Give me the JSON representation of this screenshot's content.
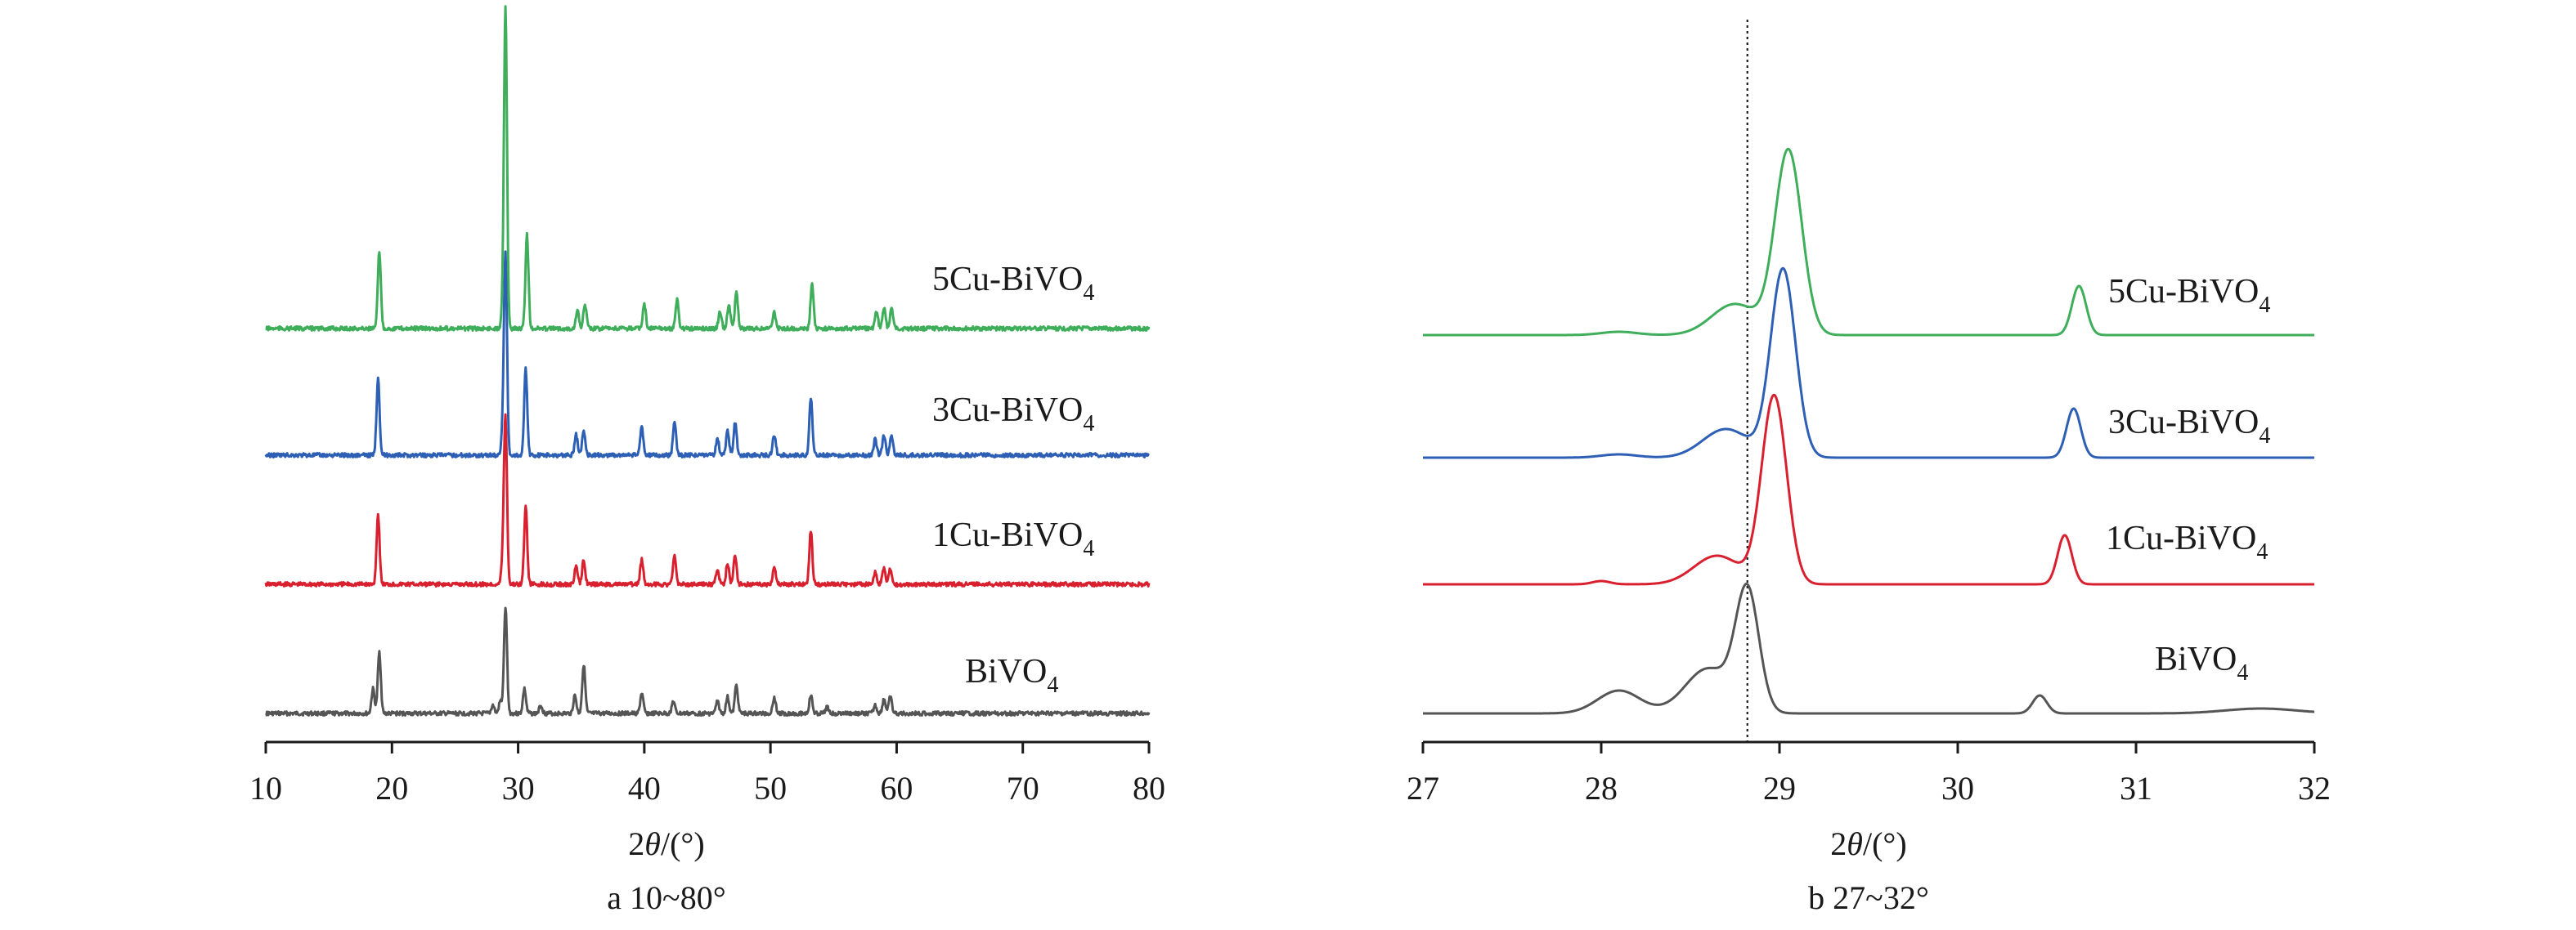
{
  "chart_data": [
    {
      "type": "line",
      "xlabel": "2θ/(°)",
      "caption": "a 10~80°",
      "xlim": [
        10,
        80
      ],
      "x_ticks": [
        10,
        20,
        30,
        40,
        50,
        60,
        70,
        80
      ],
      "ylabel": "",
      "grid": false,
      "series": [
        {
          "name": "BiVO4",
          "label_main": "BiVO",
          "label_sub": "4",
          "color": "#555555",
          "peaks": [
            [
              18.5,
              0.3
            ],
            [
              19.0,
              0.75
            ],
            [
              28.0,
              0.1
            ],
            [
              28.6,
              0.15
            ],
            [
              29.0,
              1.3
            ],
            [
              30.5,
              0.3
            ],
            [
              31.8,
              0.1
            ],
            [
              34.5,
              0.22
            ],
            [
              35.2,
              0.6
            ],
            [
              39.8,
              0.25
            ],
            [
              42.3,
              0.15
            ],
            [
              45.8,
              0.15
            ],
            [
              46.6,
              0.2
            ],
            [
              47.3,
              0.35
            ],
            [
              50.3,
              0.2
            ],
            [
              53.2,
              0.22
            ],
            [
              54.5,
              0.08
            ],
            [
              58.3,
              0.1
            ],
            [
              59.0,
              0.18
            ],
            [
              59.5,
              0.2
            ]
          ]
        },
        {
          "name": "1Cu-BiVO4",
          "label_main": "1Cu-BiVO",
          "label_sub": "4",
          "color": "#d9202f",
          "peaks": [
            [
              18.9,
              0.85
            ],
            [
              28.8,
              0.3
            ],
            [
              29.0,
              2.0
            ],
            [
              30.6,
              0.95
            ],
            [
              34.6,
              0.22
            ],
            [
              35.2,
              0.3
            ],
            [
              39.8,
              0.3
            ],
            [
              42.4,
              0.35
            ],
            [
              45.8,
              0.18
            ],
            [
              46.6,
              0.25
            ],
            [
              47.2,
              0.35
            ],
            [
              50.3,
              0.22
            ],
            [
              53.2,
              0.65
            ],
            [
              58.3,
              0.15
            ],
            [
              59.0,
              0.2
            ],
            [
              59.5,
              0.2
            ]
          ]
        },
        {
          "name": "3Cu-BiVO4",
          "label_main": "3Cu-BiVO",
          "label_sub": "4",
          "color": "#2d5fb5",
          "peaks": [
            [
              18.9,
              0.95
            ],
            [
              28.8,
              0.3
            ],
            [
              29.0,
              2.4
            ],
            [
              30.6,
              1.05
            ],
            [
              34.6,
              0.25
            ],
            [
              35.2,
              0.3
            ],
            [
              39.8,
              0.35
            ],
            [
              42.4,
              0.4
            ],
            [
              45.8,
              0.2
            ],
            [
              46.6,
              0.3
            ],
            [
              47.2,
              0.4
            ],
            [
              50.3,
              0.25
            ],
            [
              53.2,
              0.7
            ],
            [
              58.3,
              0.2
            ],
            [
              59.0,
              0.25
            ],
            [
              59.6,
              0.25
            ]
          ]
        },
        {
          "name": "5Cu-BiVO4",
          "label_main": "5Cu-BiVO",
          "label_sub": "4",
          "color": "#3fae5a",
          "peaks": [
            [
              19.0,
              0.95
            ],
            [
              28.8,
              0.25
            ],
            [
              29.0,
              3.9
            ],
            [
              30.7,
              1.15
            ],
            [
              34.7,
              0.22
            ],
            [
              35.3,
              0.3
            ],
            [
              40.0,
              0.3
            ],
            [
              42.6,
              0.35
            ],
            [
              46.0,
              0.2
            ],
            [
              46.7,
              0.3
            ],
            [
              47.3,
              0.45
            ],
            [
              50.3,
              0.2
            ],
            [
              53.3,
              0.55
            ],
            [
              58.4,
              0.2
            ],
            [
              59.0,
              0.25
            ],
            [
              59.6,
              0.25
            ]
          ]
        }
      ]
    },
    {
      "type": "line",
      "xlabel": "2θ/(°)",
      "caption": "b 27~32°",
      "xlim": [
        27,
        32
      ],
      "x_ticks": [
        27,
        28,
        29,
        30,
        31,
        32
      ],
      "ylabel": "",
      "grid": false,
      "reference_line_x": 28.82,
      "series": [
        {
          "name": "BiVO4",
          "label_main": "BiVO",
          "label_sub": "4",
          "color": "#555555",
          "peaks": [
            [
              28.1,
              0.28,
              0.12
            ],
            [
              28.6,
              0.55,
              0.13
            ],
            [
              28.82,
              1.45,
              0.065
            ],
            [
              30.46,
              0.22,
              0.04
            ],
            [
              31.7,
              0.06,
              0.2
            ]
          ]
        },
        {
          "name": "1Cu-BiVO4",
          "label_main": "1Cu-BiVO",
          "label_sub": "4",
          "color": "#d9202f",
          "peaks": [
            [
              28.0,
              0.04,
              0.05
            ],
            [
              28.65,
              0.35,
              0.13
            ],
            [
              28.97,
              2.3,
              0.07
            ],
            [
              30.6,
              0.6,
              0.04
            ]
          ]
        },
        {
          "name": "3Cu-BiVO4",
          "label_main": "3Cu-BiVO",
          "label_sub": "4",
          "color": "#2d5fb5",
          "peaks": [
            [
              28.1,
              0.04,
              0.1
            ],
            [
              28.7,
              0.35,
              0.13
            ],
            [
              29.02,
              2.3,
              0.07
            ],
            [
              30.65,
              0.6,
              0.04
            ]
          ]
        },
        {
          "name": "5Cu-BiVO4",
          "label_main": "5Cu-BiVO",
          "label_sub": "4",
          "color": "#3fae5a",
          "peaks": [
            [
              28.1,
              0.04,
              0.1
            ],
            [
              28.75,
              0.38,
              0.13
            ],
            [
              29.05,
              2.25,
              0.075
            ],
            [
              30.68,
              0.6,
              0.04
            ]
          ]
        }
      ]
    }
  ]
}
